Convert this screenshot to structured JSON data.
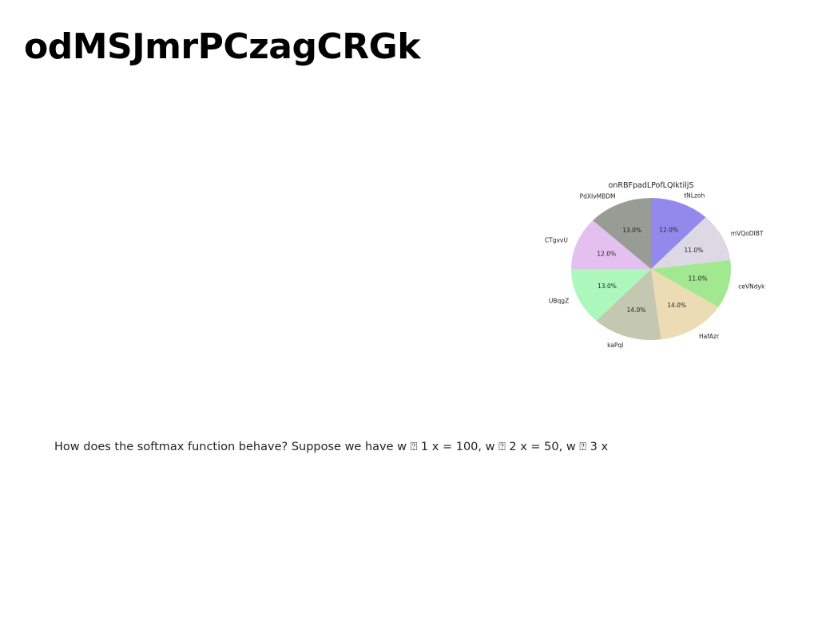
{
  "page": {
    "title": "odMSJmrPCzagCRGk",
    "question": "How does the softmax function behave? Suppose we have w ⍰ 1 x = 100, w ⍰ 2 x = 50, w ⍰ 3 x"
  },
  "chart_data": {
    "type": "pie",
    "title": "onRBFpadLPofLQIktiljS",
    "slices": [
      {
        "label": "tNLzoh",
        "value": 12.0,
        "pct_label": "12.0%",
        "color": "#9389ec"
      },
      {
        "label": "mVQoDIBT",
        "value": 11.0,
        "pct_label": "11.0%",
        "color": "#dcd8e4"
      },
      {
        "label": "ceVNdyk",
        "value": 11.0,
        "pct_label": "11.0%",
        "color": "#a2e890"
      },
      {
        "label": "HafAzr",
        "value": 14.0,
        "pct_label": "14.0%",
        "color": "#ecdcb4"
      },
      {
        "label": "kaPqI",
        "value": 14.0,
        "pct_label": "14.0%",
        "color": "#c4c8b0"
      },
      {
        "label": "UBqgZ",
        "value": 13.0,
        "pct_label": "13.0%",
        "color": "#acf8bc"
      },
      {
        "label": "CTgvvU",
        "value": 12.0,
        "pct_label": "12.0%",
        "color": "#e4c0f0"
      },
      {
        "label": "PdXIvMBDM",
        "value": 13.0,
        "pct_label": "13.0%",
        "color": "#979c94"
      }
    ],
    "start_angle": "top",
    "direction": "clockwise",
    "legend": "none"
  }
}
